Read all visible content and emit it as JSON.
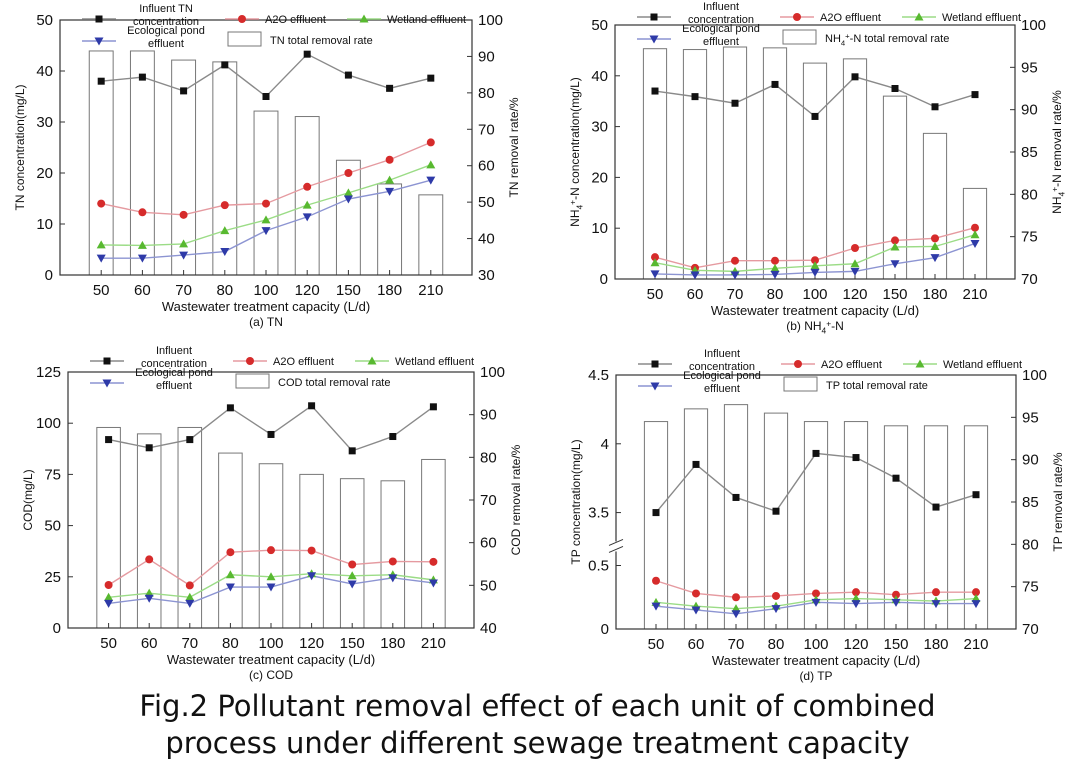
{
  "caption": {
    "line1": "Fig.2 Pollutant removal effect of each unit of combined",
    "line2": "process under different sewage treatment capacity"
  },
  "colors": {
    "influent": "#111111",
    "a2o": "#d62b2b",
    "wetland": "#58b930",
    "pond": "#2e3aa8",
    "bar_edge": "#777777"
  },
  "chart_data": [
    {
      "type": "bar+line",
      "subtitle": "(a) TN",
      "categories": [
        "50",
        "60",
        "70",
        "80",
        "100",
        "120",
        "150",
        "180",
        "210"
      ],
      "xlabel": "Wastewater treatment capacity (L/d)",
      "ylabel_left": "TN concentration(mg/L)",
      "ylabel_right": "TN removal rate/%",
      "ylim_left": [
        0,
        50
      ],
      "yticks_left": [
        0,
        10,
        20,
        30,
        40,
        50
      ],
      "ylim_right": [
        30,
        100
      ],
      "yticks_right": [
        30,
        40,
        50,
        60,
        70,
        80,
        90,
        100
      ],
      "legend": {
        "influent": "Influent TN concentration",
        "a2o": "A2O effluent",
        "wetland": "Wetland effluent",
        "pond": "Ecological pond effluent",
        "bars": "TN total removal rate"
      },
      "bars": [
        91.5,
        91.5,
        89.0,
        88.5,
        75.0,
        73.5,
        61.5,
        55.0,
        52.0
      ],
      "series": [
        {
          "key": "influent",
          "values": [
            38.0,
            38.8,
            36.1,
            41.2,
            35.0,
            43.3,
            39.2,
            36.6,
            38.6
          ]
        },
        {
          "key": "a2o",
          "values": [
            14.0,
            12.3,
            11.8,
            13.7,
            14.0,
            17.3,
            20.0,
            22.6,
            26.0
          ]
        },
        {
          "key": "wetland",
          "values": [
            5.9,
            5.8,
            6.1,
            8.7,
            10.8,
            13.7,
            16.1,
            18.6,
            21.6
          ]
        },
        {
          "key": "pond",
          "values": [
            3.3,
            3.3,
            3.9,
            4.6,
            8.7,
            11.4,
            14.9,
            16.4,
            18.6
          ]
        }
      ]
    },
    {
      "type": "bar+line",
      "subtitle": "(b) NH4+-N",
      "categories": [
        "50",
        "60",
        "70",
        "80",
        "100",
        "120",
        "150",
        "180",
        "210"
      ],
      "xlabel": "Wastewater treatment capacity (L/d)",
      "ylabel_left": "NH4+-N concentration(mg/L)",
      "ylabel_right": "NH4+-N removal rate/%",
      "ylim_left": [
        0,
        50
      ],
      "yticks_left": [
        0,
        10,
        20,
        30,
        40,
        50
      ],
      "ylim_right": [
        70,
        100
      ],
      "yticks_right": [
        70,
        75,
        80,
        85,
        90,
        95,
        100
      ],
      "legend": {
        "influent": "Influent concentration",
        "a2o": "A2O effluent",
        "wetland": "Wetland effluent",
        "pond": "Ecological pond effluent",
        "bars": "NH4+-N total removal rate"
      },
      "bars": [
        97.2,
        97.1,
        97.4,
        97.3,
        95.5,
        96.0,
        91.6,
        87.2,
        80.7
      ],
      "series": [
        {
          "key": "influent",
          "values": [
            37.0,
            35.9,
            34.6,
            38.3,
            32.0,
            39.8,
            37.5,
            33.9,
            36.3
          ]
        },
        {
          "key": "a2o",
          "values": [
            4.3,
            2.2,
            3.6,
            3.6,
            3.7,
            6.1,
            7.6,
            8.0,
            10.1
          ]
        },
        {
          "key": "wetland",
          "values": [
            3.2,
            1.7,
            1.5,
            2.1,
            2.6,
            3.0,
            6.3,
            6.4,
            8.7
          ]
        },
        {
          "key": "pond",
          "values": [
            1.0,
            0.8,
            0.8,
            0.9,
            1.3,
            1.5,
            3.0,
            4.2,
            7.0
          ]
        }
      ]
    },
    {
      "type": "bar+line",
      "subtitle": "(c) COD",
      "categories": [
        "50",
        "60",
        "70",
        "80",
        "100",
        "120",
        "150",
        "180",
        "210"
      ],
      "xlabel": "Wastewater treatment capacity (L/d)",
      "ylabel_left": "COD(mg/L)",
      "ylabel_right": "COD removal rate/%",
      "ylim_left": [
        0,
        125
      ],
      "yticks_left": [
        0,
        25,
        50,
        75,
        100,
        125
      ],
      "ylim_right": [
        40,
        100
      ],
      "yticks_right": [
        40,
        50,
        60,
        70,
        80,
        90,
        100
      ],
      "legend": {
        "influent": "Influent concentration",
        "a2o": "A2O effluent",
        "wetland": "Wetland effluent",
        "pond": "Ecological pond effluent",
        "bars": "COD total removal rate"
      },
      "bars": [
        87.0,
        85.5,
        87.0,
        81.0,
        78.5,
        76.0,
        75.0,
        74.5,
        79.5
      ],
      "series": [
        {
          "key": "influent",
          "values": [
            92.0,
            88.0,
            92.0,
            107.5,
            94.5,
            108.5,
            86.5,
            93.5,
            108.0
          ]
        },
        {
          "key": "a2o",
          "values": [
            21.0,
            33.5,
            20.8,
            37.0,
            38.0,
            37.8,
            31.0,
            32.5,
            32.3
          ]
        },
        {
          "key": "wetland",
          "values": [
            15.0,
            17.0,
            15.0,
            26.0,
            25.0,
            26.5,
            25.5,
            26.0,
            23.5
          ]
        },
        {
          "key": "pond",
          "values": [
            12.0,
            14.5,
            12.0,
            20.0,
            20.0,
            25.5,
            21.5,
            24.5,
            22.0
          ]
        }
      ]
    },
    {
      "type": "bar+line",
      "subtitle": "(d) TP",
      "categories": [
        "50",
        "60",
        "70",
        "80",
        "100",
        "120",
        "150",
        "180",
        "210"
      ],
      "xlabel": "Wastewater treatment capacity (L/d)",
      "ylabel_left": "TP concentration(mg/L)",
      "ylabel_right": "TP removal rate/%",
      "ylim_left": [
        0,
        4.5
      ],
      "axis_break_left": [
        0.6,
        3.3
      ],
      "yticks_left_low": [
        0,
        0.5
      ],
      "yticks_left_high": [
        3.5,
        4.0,
        4.5
      ],
      "ylim_right": [
        70,
        100
      ],
      "yticks_right": [
        70,
        75,
        80,
        85,
        90,
        95,
        100
      ],
      "legend": {
        "influent": "Influent concentration",
        "a2o": "A2O effluent",
        "wetland": "Wetland effluent",
        "pond": "Ecological pond effluent",
        "bars": "TP total removal rate"
      },
      "bars": [
        94.5,
        96.0,
        96.5,
        95.5,
        94.5,
        94.5,
        94.0,
        94.0,
        94.0
      ],
      "series": [
        {
          "key": "influent",
          "values": [
            3.5,
            3.85,
            3.61,
            3.51,
            3.93,
            3.9,
            3.75,
            3.54,
            3.63
          ]
        },
        {
          "key": "a2o",
          "values": [
            0.38,
            0.28,
            0.25,
            0.26,
            0.28,
            0.29,
            0.27,
            0.29,
            0.29
          ]
        },
        {
          "key": "wetland",
          "values": [
            0.21,
            0.18,
            0.16,
            0.18,
            0.23,
            0.24,
            0.23,
            0.22,
            0.24
          ]
        },
        {
          "key": "pond",
          "values": [
            0.18,
            0.15,
            0.12,
            0.16,
            0.21,
            0.2,
            0.21,
            0.2,
            0.2
          ]
        }
      ]
    }
  ]
}
